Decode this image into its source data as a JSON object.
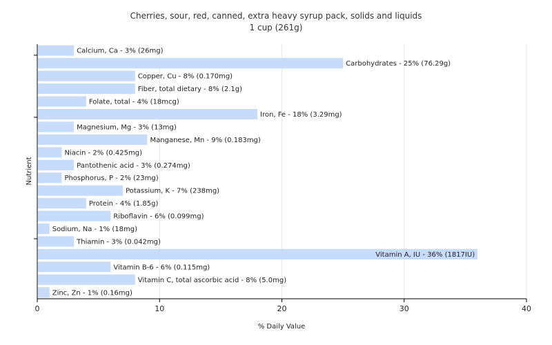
{
  "chart_data": {
    "type": "bar",
    "orientation": "horizontal",
    "title": "Cherries, sour, red, canned, extra heavy syrup pack, solids and liquids",
    "subtitle": "1 cup (261g)",
    "xlabel": "% Daily Value",
    "ylabel": "Nutrient",
    "xlim": [
      0,
      40
    ],
    "xticks": [
      0,
      10,
      20,
      30,
      40
    ],
    "grid": true,
    "bar_color": "#c6dcfa",
    "categories": [
      "Calcium, Ca",
      "Carbohydrates",
      "Copper, Cu",
      "Fiber, total dietary",
      "Folate, total",
      "Iron, Fe",
      "Magnesium, Mg",
      "Manganese, Mn",
      "Niacin",
      "Pantothenic acid",
      "Phosphorus, P",
      "Potassium, K",
      "Protein",
      "Riboflavin",
      "Sodium, Na",
      "Thiamin",
      "Vitamin A, IU",
      "Vitamin B-6",
      "Vitamin C, total ascorbic acid",
      "Zinc, Zn"
    ],
    "values": [
      3,
      25,
      8,
      8,
      4,
      18,
      3,
      9,
      2,
      3,
      2,
      7,
      4,
      6,
      1,
      3,
      36,
      6,
      8,
      1
    ],
    "labels": [
      "Calcium, Ca - 3% (26mg)",
      "Carbohydrates - 25% (76.29g)",
      "Copper, Cu - 8% (0.170mg)",
      "Fiber, total dietary - 8% (2.1g)",
      "Folate, total - 4% (18mcg)",
      "Iron, Fe - 18% (3.29mg)",
      "Magnesium, Mg - 3% (13mg)",
      "Manganese, Mn - 9% (0.183mg)",
      "Niacin - 2% (0.425mg)",
      "Pantothenic acid - 3% (0.274mg)",
      "Phosphorus, P - 2% (23mg)",
      "Potassium, K - 7% (238mg)",
      "Protein - 4% (1.85g)",
      "Riboflavin - 6% (0.099mg)",
      "Sodium, Na - 1% (18mg)",
      "Thiamin - 3% (0.042mg)",
      "Vitamin A, IU - 36% (1817IU)",
      "Vitamin B-6 - 6% (0.115mg)",
      "Vitamin C, total ascorbic acid - 8% (5.0mg)",
      "Zinc, Zn - 1% (0.16mg)"
    ]
  }
}
